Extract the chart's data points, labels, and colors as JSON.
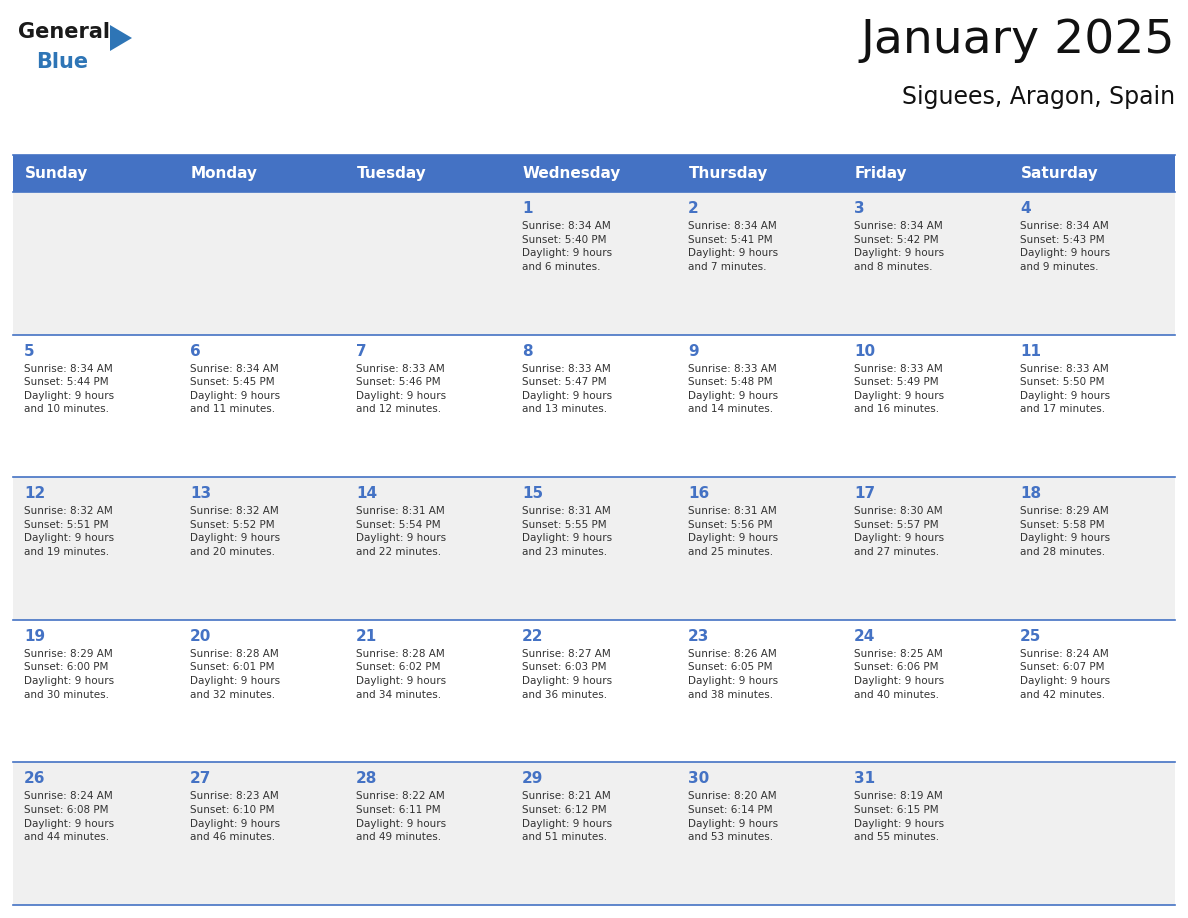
{
  "title": "January 2025",
  "subtitle": "Siguees, Aragon, Spain",
  "days_of_week": [
    "Sunday",
    "Monday",
    "Tuesday",
    "Wednesday",
    "Thursday",
    "Friday",
    "Saturday"
  ],
  "header_bg": "#4472C4",
  "header_text": "#FFFFFF",
  "row_bg_odd": "#F0F0F0",
  "row_bg_even": "#FFFFFF",
  "day_number_color": "#4472C4",
  "cell_text_color": "#333333",
  "grid_color": "#4472C4",
  "calendar_data": [
    [
      {
        "day": null,
        "info": ""
      },
      {
        "day": null,
        "info": ""
      },
      {
        "day": null,
        "info": ""
      },
      {
        "day": 1,
        "info": "Sunrise: 8:34 AM\nSunset: 5:40 PM\nDaylight: 9 hours\nand 6 minutes."
      },
      {
        "day": 2,
        "info": "Sunrise: 8:34 AM\nSunset: 5:41 PM\nDaylight: 9 hours\nand 7 minutes."
      },
      {
        "day": 3,
        "info": "Sunrise: 8:34 AM\nSunset: 5:42 PM\nDaylight: 9 hours\nand 8 minutes."
      },
      {
        "day": 4,
        "info": "Sunrise: 8:34 AM\nSunset: 5:43 PM\nDaylight: 9 hours\nand 9 minutes."
      }
    ],
    [
      {
        "day": 5,
        "info": "Sunrise: 8:34 AM\nSunset: 5:44 PM\nDaylight: 9 hours\nand 10 minutes."
      },
      {
        "day": 6,
        "info": "Sunrise: 8:34 AM\nSunset: 5:45 PM\nDaylight: 9 hours\nand 11 minutes."
      },
      {
        "day": 7,
        "info": "Sunrise: 8:33 AM\nSunset: 5:46 PM\nDaylight: 9 hours\nand 12 minutes."
      },
      {
        "day": 8,
        "info": "Sunrise: 8:33 AM\nSunset: 5:47 PM\nDaylight: 9 hours\nand 13 minutes."
      },
      {
        "day": 9,
        "info": "Sunrise: 8:33 AM\nSunset: 5:48 PM\nDaylight: 9 hours\nand 14 minutes."
      },
      {
        "day": 10,
        "info": "Sunrise: 8:33 AM\nSunset: 5:49 PM\nDaylight: 9 hours\nand 16 minutes."
      },
      {
        "day": 11,
        "info": "Sunrise: 8:33 AM\nSunset: 5:50 PM\nDaylight: 9 hours\nand 17 minutes."
      }
    ],
    [
      {
        "day": 12,
        "info": "Sunrise: 8:32 AM\nSunset: 5:51 PM\nDaylight: 9 hours\nand 19 minutes."
      },
      {
        "day": 13,
        "info": "Sunrise: 8:32 AM\nSunset: 5:52 PM\nDaylight: 9 hours\nand 20 minutes."
      },
      {
        "day": 14,
        "info": "Sunrise: 8:31 AM\nSunset: 5:54 PM\nDaylight: 9 hours\nand 22 minutes."
      },
      {
        "day": 15,
        "info": "Sunrise: 8:31 AM\nSunset: 5:55 PM\nDaylight: 9 hours\nand 23 minutes."
      },
      {
        "day": 16,
        "info": "Sunrise: 8:31 AM\nSunset: 5:56 PM\nDaylight: 9 hours\nand 25 minutes."
      },
      {
        "day": 17,
        "info": "Sunrise: 8:30 AM\nSunset: 5:57 PM\nDaylight: 9 hours\nand 27 minutes."
      },
      {
        "day": 18,
        "info": "Sunrise: 8:29 AM\nSunset: 5:58 PM\nDaylight: 9 hours\nand 28 minutes."
      }
    ],
    [
      {
        "day": 19,
        "info": "Sunrise: 8:29 AM\nSunset: 6:00 PM\nDaylight: 9 hours\nand 30 minutes."
      },
      {
        "day": 20,
        "info": "Sunrise: 8:28 AM\nSunset: 6:01 PM\nDaylight: 9 hours\nand 32 minutes."
      },
      {
        "day": 21,
        "info": "Sunrise: 8:28 AM\nSunset: 6:02 PM\nDaylight: 9 hours\nand 34 minutes."
      },
      {
        "day": 22,
        "info": "Sunrise: 8:27 AM\nSunset: 6:03 PM\nDaylight: 9 hours\nand 36 minutes."
      },
      {
        "day": 23,
        "info": "Sunrise: 8:26 AM\nSunset: 6:05 PM\nDaylight: 9 hours\nand 38 minutes."
      },
      {
        "day": 24,
        "info": "Sunrise: 8:25 AM\nSunset: 6:06 PM\nDaylight: 9 hours\nand 40 minutes."
      },
      {
        "day": 25,
        "info": "Sunrise: 8:24 AM\nSunset: 6:07 PM\nDaylight: 9 hours\nand 42 minutes."
      }
    ],
    [
      {
        "day": 26,
        "info": "Sunrise: 8:24 AM\nSunset: 6:08 PM\nDaylight: 9 hours\nand 44 minutes."
      },
      {
        "day": 27,
        "info": "Sunrise: 8:23 AM\nSunset: 6:10 PM\nDaylight: 9 hours\nand 46 minutes."
      },
      {
        "day": 28,
        "info": "Sunrise: 8:22 AM\nSunset: 6:11 PM\nDaylight: 9 hours\nand 49 minutes."
      },
      {
        "day": 29,
        "info": "Sunrise: 8:21 AM\nSunset: 6:12 PM\nDaylight: 9 hours\nand 51 minutes."
      },
      {
        "day": 30,
        "info": "Sunrise: 8:20 AM\nSunset: 6:14 PM\nDaylight: 9 hours\nand 53 minutes."
      },
      {
        "day": 31,
        "info": "Sunrise: 8:19 AM\nSunset: 6:15 PM\nDaylight: 9 hours\nand 55 minutes."
      },
      {
        "day": null,
        "info": ""
      }
    ]
  ],
  "logo_general_color": "#1a1a1a",
  "logo_blue_color": "#2E75B6",
  "logo_triangle_color": "#2E75B6",
  "fig_width": 11.88,
  "fig_height": 9.18,
  "dpi": 100
}
